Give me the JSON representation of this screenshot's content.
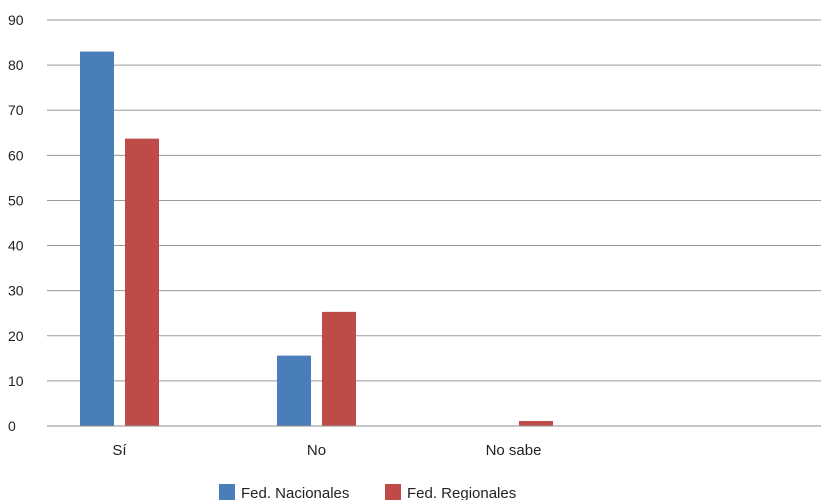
{
  "chart_data": {
    "type": "bar",
    "categories": [
      "Sí",
      "No",
      "No sabe"
    ],
    "series": [
      {
        "name": "Fed. Nacionales",
        "color": "#4a7ebb",
        "values": [
          83,
          15.6,
          0
        ]
      },
      {
        "name": "Fed. Regionales",
        "color": "#be4b48",
        "values": [
          63.7,
          25.3,
          1.1
        ]
      }
    ],
    "ylim": [
      0,
      90
    ],
    "yticks": [
      0,
      10,
      20,
      30,
      40,
      50,
      60,
      70,
      80,
      90
    ],
    "grid": true,
    "legend": "bottom"
  }
}
